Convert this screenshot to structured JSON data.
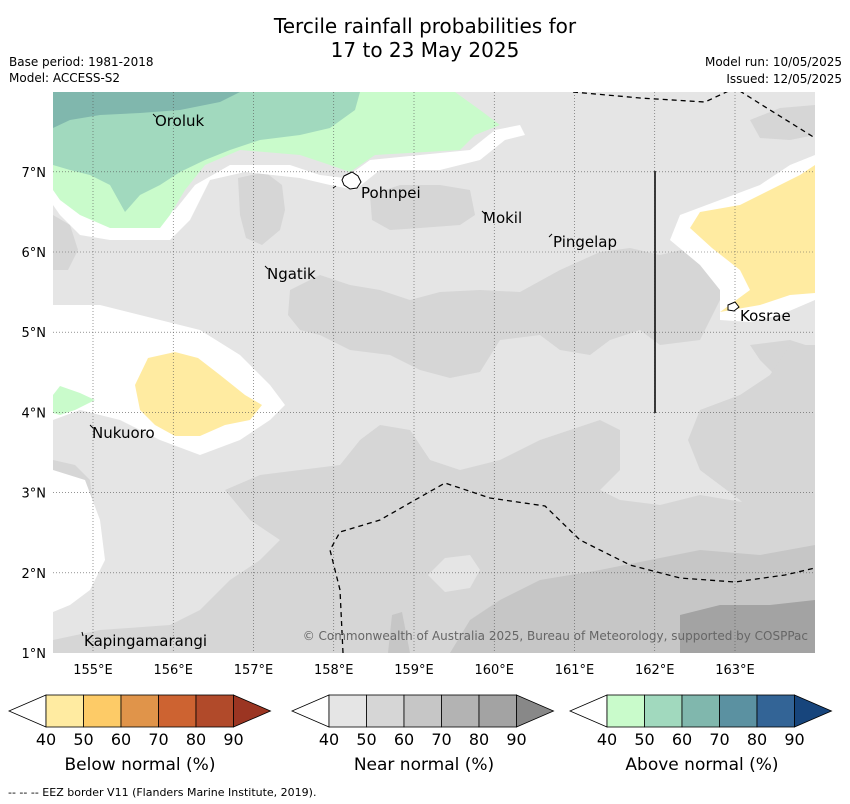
{
  "title": {
    "line1": "Tercile rainfall probabilities for",
    "line2": "17 to 23 May 2025"
  },
  "meta": {
    "base_period": "Base period: 1981-2018",
    "model": "Model: ACCESS-S2",
    "model_run": "Model run: 10/05/2025",
    "issued": "Issued: 12/05/2025"
  },
  "map": {
    "lat_ticks": [
      "1°N",
      "2°N",
      "3°N",
      "4°N",
      "5°N",
      "6°N",
      "7°N"
    ],
    "lon_ticks": [
      "155°E",
      "156°E",
      "157°E",
      "158°E",
      "159°E",
      "160°E",
      "161°E",
      "162°E",
      "163°E"
    ],
    "places": [
      {
        "name": "Oroluk"
      },
      {
        "name": "Pohnpei"
      },
      {
        "name": "Mokil"
      },
      {
        "name": "Pingelap"
      },
      {
        "name": "Ngatik"
      },
      {
        "name": "Kosrae"
      },
      {
        "name": "Nukuoro"
      },
      {
        "name": "Kapingamarangi"
      }
    ],
    "credit": "© Commonwealth of Australia 2025, Bureau of Meteorology, supported by COSPPac"
  },
  "legends": [
    {
      "label": "Below normal (%)",
      "ticks": [
        "40",
        "50",
        "60",
        "70",
        "80",
        "90"
      ],
      "colors": [
        "#ffffff",
        "#ffeba1",
        "#fdcb67",
        "#e0944a",
        "#cd6331",
        "#b14a2a",
        "#9b3522"
      ]
    },
    {
      "label": "Near normal (%)",
      "ticks": [
        "40",
        "50",
        "60",
        "70",
        "80",
        "90"
      ],
      "colors": [
        "#ffffff",
        "#e5e5e5",
        "#d6d6d6",
        "#c6c6c6",
        "#b3b3b3",
        "#a3a3a3",
        "#888888"
      ]
    },
    {
      "label": "Above normal (%)",
      "ticks": [
        "40",
        "50",
        "60",
        "70",
        "80",
        "90"
      ],
      "colors": [
        "#ffffff",
        "#c9fbcb",
        "#a1d9be",
        "#80b7ad",
        "#5b91a1",
        "#336496",
        "#17457c"
      ]
    }
  ],
  "footnote": "--  --  -- EEZ border V11 (Flanders Marine Institute, 2019)."
}
